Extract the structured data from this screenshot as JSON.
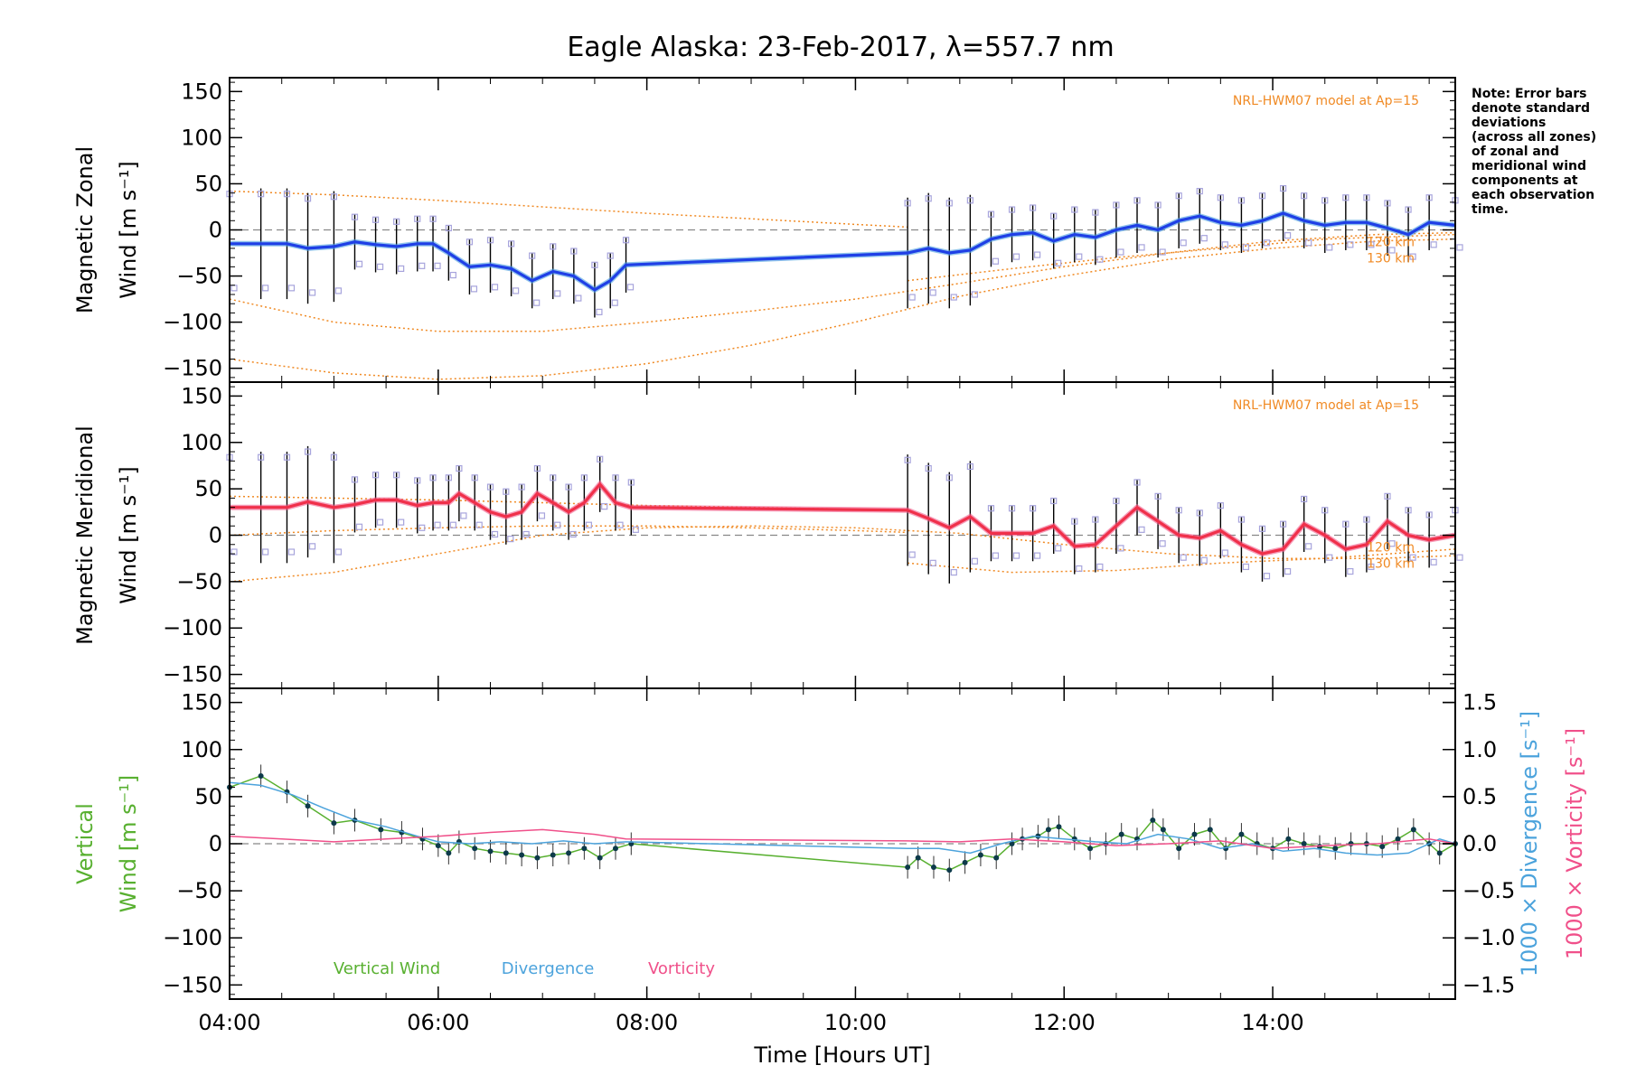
{
  "colors": {
    "zonal": "#1f3fe6",
    "zonal_smooth": "#4a9ee0",
    "meridional": "#f0304a",
    "meridional_smooth": "#f05a8a",
    "model": "#f08a24",
    "samples": "#a7a4dc",
    "vertical": "#58b030",
    "divergence": "#4ca3dc",
    "vorticity": "#f0508a",
    "error_bar": "#000000",
    "zero_line": "#888888"
  },
  "chart_data": [
    {
      "type": "line",
      "title": "Eagle Alaska: 23-Feb-2017, λ=557.7 nm",
      "ylabel_line1": "Magnetic Zonal",
      "ylabel_line2": "Wind [m s⁻¹]",
      "xlim": [
        4.0,
        15.75
      ],
      "ylim": [
        -165,
        165
      ],
      "yticks": [
        -150,
        -100,
        -50,
        0,
        50,
        100,
        150
      ],
      "ytick_labels": [
        "−150",
        "−100",
        "−50",
        "0",
        "50",
        "100",
        "150"
      ],
      "model_label": "NRL-HWM07 model at Ap=15",
      "model_altitudes": [
        "120 km",
        "130 km"
      ],
      "note": [
        "Note: Error bars",
        "denote standard",
        "deviations",
        "(across all zones)",
        "of zonal and",
        "meridional wind",
        "components at",
        "each observation",
        "time."
      ],
      "series": [
        {
          "name": "zonal",
          "x": [
            4.0,
            4.3,
            4.55,
            4.75,
            5.0,
            5.2,
            5.4,
            5.6,
            5.8,
            5.95,
            6.1,
            6.3,
            6.5,
            6.7,
            6.9,
            7.1,
            7.3,
            7.5,
            7.65,
            7.8,
            10.5,
            10.7,
            10.9,
            11.1,
            11.3,
            11.5,
            11.7,
            11.9,
            12.1,
            12.3,
            12.5,
            12.7,
            12.9,
            13.1,
            13.3,
            13.5,
            13.7,
            13.9,
            14.1,
            14.3,
            14.5,
            14.7,
            14.9,
            15.1,
            15.3,
            15.5,
            15.75
          ],
          "y": [
            -15,
            -15,
            -15,
            -20,
            -18,
            -13,
            -16,
            -18,
            -15,
            -15,
            -25,
            -40,
            -38,
            -42,
            -55,
            -45,
            -50,
            -65,
            -55,
            -38,
            -25,
            -20,
            -25,
            -22,
            -10,
            -5,
            -3,
            -12,
            -5,
            -8,
            0,
            5,
            0,
            10,
            15,
            8,
            5,
            10,
            18,
            10,
            5,
            8,
            8,
            2,
            -5,
            8,
            5
          ]
        }
      ],
      "models": [
        {
          "x": [
            4.0,
            5.0,
            6.0,
            7.0,
            8.0,
            9.0,
            10.0,
            10.5
          ],
          "y": [
            42,
            38,
            32,
            25,
            18,
            12,
            6,
            3
          ]
        },
        {
          "x": [
            4.0,
            5.0,
            6.0,
            7.0,
            8.0,
            9.0,
            10.0,
            11.0,
            12.0,
            13.0,
            14.0,
            15.0,
            15.75
          ],
          "y": [
            -75,
            -100,
            -110,
            -110,
            -100,
            -88,
            -75,
            -58,
            -40,
            -25,
            -12,
            -5,
            -3
          ]
        },
        {
          "x": [
            4.0,
            5.0,
            6.0,
            7.0,
            8.0,
            9.0,
            10.0,
            11.0,
            12.0,
            13.0,
            14.0,
            15.0,
            15.75
          ],
          "y": [
            -140,
            -155,
            -162,
            -158,
            -145,
            -125,
            -100,
            -72,
            -50,
            -32,
            -20,
            -12,
            -10
          ]
        },
        {
          "x": [
            10.5,
            11.5,
            12.5,
            13.5,
            14.5,
            15.75
          ],
          "y": [
            -55,
            -42,
            -30,
            -20,
            -10,
            -5
          ]
        }
      ]
    },
    {
      "type": "line",
      "ylabel_line1": "Magnetic Meridional",
      "ylabel_line2": "Wind [m s⁻¹]",
      "xlim": [
        4.0,
        15.75
      ],
      "ylim": [
        -165,
        165
      ],
      "yticks": [
        -150,
        -100,
        -50,
        0,
        50,
        100,
        150
      ],
      "ytick_labels": [
        "−150",
        "−100",
        "−50",
        "0",
        "50",
        "100",
        "150"
      ],
      "model_label": "NRL-HWM07 model at Ap=15",
      "model_altitudes": [
        "120 km",
        "130 km"
      ],
      "series": [
        {
          "name": "meridional",
          "x": [
            4.0,
            4.3,
            4.55,
            4.75,
            5.0,
            5.2,
            5.4,
            5.6,
            5.8,
            5.95,
            6.1,
            6.2,
            6.35,
            6.5,
            6.65,
            6.8,
            6.95,
            7.1,
            7.25,
            7.4,
            7.55,
            7.7,
            7.85,
            10.5,
            10.7,
            10.9,
            11.1,
            11.3,
            11.5,
            11.7,
            11.9,
            12.1,
            12.3,
            12.5,
            12.7,
            12.9,
            13.1,
            13.3,
            13.5,
            13.7,
            13.9,
            14.1,
            14.3,
            14.5,
            14.7,
            14.9,
            15.1,
            15.3,
            15.5,
            15.75
          ],
          "y": [
            30,
            30,
            30,
            36,
            30,
            33,
            38,
            38,
            32,
            35,
            35,
            45,
            35,
            25,
            20,
            25,
            45,
            35,
            25,
            35,
            55,
            35,
            30,
            27,
            18,
            8,
            20,
            2,
            2,
            2,
            10,
            -12,
            -10,
            10,
            30,
            15,
            0,
            -3,
            5,
            -10,
            -20,
            -15,
            12,
            0,
            -15,
            -10,
            15,
            0,
            -5,
            0
          ]
        }
      ],
      "models": [
        {
          "x": [
            4.0,
            5.0,
            6.0,
            7.0,
            8.0,
            9.0,
            10.0,
            10.5
          ],
          "y": [
            42,
            40,
            38,
            35,
            32,
            30,
            28,
            27
          ]
        },
        {
          "x": [
            4.0,
            5.0,
            6.0,
            7.0,
            8.0,
            9.0,
            10.0,
            11.0,
            12.0,
            13.0,
            14.0,
            15.0,
            15.75
          ],
          "y": [
            -50,
            -40,
            -20,
            0,
            8,
            10,
            8,
            2,
            -10,
            -20,
            -25,
            -25,
            -22
          ]
        },
        {
          "x": [
            4.0,
            5.0,
            6.0,
            7.0,
            8.0,
            9.0,
            10.0,
            10.5
          ],
          "y": [
            0,
            5,
            8,
            10,
            10,
            8,
            5,
            3
          ]
        },
        {
          "x": [
            10.5,
            11.5,
            12.5,
            13.5,
            14.5,
            15.75
          ],
          "y": [
            -30,
            -40,
            -38,
            -30,
            -25,
            -15
          ]
        }
      ]
    },
    {
      "type": "line",
      "xlabel": "Time [Hours UT]",
      "ylabel_line1": "Vertical",
      "ylabel_line2": "Wind [m s⁻¹]",
      "y2label_div": "1000 × Divergence [s⁻¹]",
      "y2label_vor": "1000 × Vorticity [s⁻¹]",
      "xlim": [
        4.0,
        15.75
      ],
      "ylim": [
        -165,
        165
      ],
      "yticks": [
        -150,
        -100,
        -50,
        0,
        50,
        100,
        150
      ],
      "ytick_labels": [
        "−150",
        "−100",
        "−50",
        "0",
        "50",
        "100",
        "150"
      ],
      "y2lim": [
        -1.65,
        1.65
      ],
      "y2ticks": [
        -1.5,
        -1.0,
        -0.5,
        0.0,
        0.5,
        1.0,
        1.5
      ],
      "y2tick_labels": [
        "−1.5",
        "−1.0",
        "−0.5",
        "0.0",
        "0.5",
        "1.0",
        "1.5"
      ],
      "xticks": [
        4,
        6,
        8,
        10,
        12,
        14
      ],
      "xtick_labels": [
        "04:00",
        "06:00",
        "08:00",
        "10:00",
        "12:00",
        "14:00"
      ],
      "legend": [
        "Vertical Wind",
        "Divergence",
        "Vorticity"
      ],
      "series": [
        {
          "name": "vertical",
          "x": [
            4.0,
            4.3,
            4.55,
            4.75,
            5.0,
            5.2,
            5.45,
            5.65,
            5.85,
            6.0,
            6.1,
            6.2,
            6.35,
            6.5,
            6.65,
            6.8,
            6.95,
            7.1,
            7.25,
            7.4,
            7.55,
            7.7,
            7.85,
            10.5,
            10.6,
            10.75,
            10.9,
            11.05,
            11.2,
            11.35,
            11.5,
            11.6,
            11.75,
            11.85,
            11.95,
            12.1,
            12.25,
            12.4,
            12.55,
            12.7,
            12.85,
            12.95,
            13.1,
            13.25,
            13.4,
            13.55,
            13.7,
            13.85,
            14.0,
            14.15,
            14.3,
            14.45,
            14.6,
            14.75,
            14.9,
            15.05,
            15.2,
            15.35,
            15.5,
            15.6,
            15.75
          ],
          "y": [
            60,
            72,
            55,
            40,
            22,
            25,
            15,
            12,
            5,
            -2,
            -10,
            2,
            -5,
            -8,
            -10,
            -12,
            -15,
            -12,
            -10,
            -5,
            -15,
            -5,
            0,
            -25,
            -15,
            -25,
            -28,
            -20,
            -12,
            -15,
            0,
            5,
            8,
            15,
            18,
            5,
            -5,
            0,
            10,
            5,
            25,
            15,
            -5,
            10,
            15,
            -5,
            10,
            0,
            -5,
            5,
            0,
            -3,
            -5,
            0,
            0,
            -3,
            5,
            15,
            0,
            -10,
            0
          ]
        },
        {
          "name": "divergence",
          "x": [
            4.0,
            4.3,
            4.6,
            4.9,
            5.2,
            5.5,
            5.8,
            6.0,
            6.3,
            6.6,
            6.9,
            7.2,
            7.5,
            7.8,
            10.5,
            10.8,
            11.1,
            11.4,
            11.7,
            12.0,
            12.3,
            12.6,
            12.9,
            13.2,
            13.5,
            13.8,
            14.1,
            14.4,
            14.7,
            15.0,
            15.3,
            15.6,
            15.75
          ],
          "y": [
            0.65,
            0.62,
            0.52,
            0.38,
            0.25,
            0.18,
            0.08,
            0.02,
            0.0,
            0.02,
            0.0,
            0.03,
            0.0,
            0.02,
            -0.05,
            -0.05,
            -0.1,
            0.0,
            0.08,
            0.05,
            0.02,
            0.0,
            0.1,
            0.05,
            -0.05,
            0.0,
            -0.08,
            -0.05,
            -0.1,
            -0.12,
            -0.1,
            0.05,
            0.0
          ]
        },
        {
          "name": "vorticity",
          "x": [
            4.0,
            4.5,
            5.0,
            5.5,
            6.0,
            6.5,
            7.0,
            7.5,
            7.8,
            10.5,
            11.0,
            11.5,
            12.0,
            12.5,
            13.0,
            13.5,
            14.0,
            14.5,
            15.0,
            15.5,
            15.75
          ],
          "y": [
            0.08,
            0.05,
            0.02,
            0.05,
            0.08,
            0.12,
            0.15,
            0.1,
            0.05,
            0.03,
            0.02,
            0.05,
            0.02,
            -0.02,
            0.0,
            0.03,
            -0.05,
            -0.02,
            0.0,
            0.05,
            0.0
          ]
        }
      ]
    }
  ]
}
